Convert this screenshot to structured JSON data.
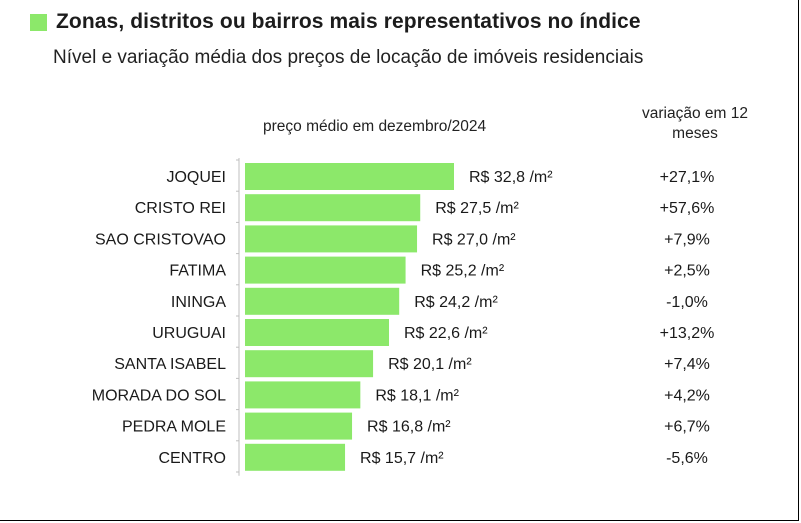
{
  "title": "Zonas, distritos ou bairros mais representativos no índice",
  "subtitle": "Nível e variação média dos preços de locação de imóveis residenciais",
  "price_header": "preço médio em dezembro/2024",
  "variation_header": "variação em 12 meses",
  "accent_color": "#8ce86a",
  "chart_data": {
    "type": "bar",
    "orientation": "horizontal",
    "title": "Zonas, distritos ou bairros mais representativos no índice",
    "subtitle": "Nível e variação média dos preços de locação de imóveis residenciais",
    "xlabel": "preço médio em dezembro/2024",
    "ylabel": "",
    "unit": "R$/m²",
    "categories": [
      "JOQUEI",
      "CRISTO REI",
      "SAO CRISTOVAO",
      "FATIMA",
      "ININGA",
      "URUGUAI",
      "SANTA ISABEL",
      "MORADA DO SOL",
      "PEDRA MOLE",
      "CENTRO"
    ],
    "values": [
      32.8,
      27.5,
      27.0,
      25.2,
      24.2,
      22.6,
      20.1,
      18.1,
      16.8,
      15.7
    ],
    "value_labels": [
      "R$ 32,8 /m²",
      "R$ 27,5 /m²",
      "R$ 27,0 /m²",
      "R$ 25,2 /m²",
      "R$ 24,2 /m²",
      "R$ 22,6 /m²",
      "R$ 20,1 /m²",
      "R$ 18,1 /m²",
      "R$ 16,8 /m²",
      "R$ 15,7 /m²"
    ],
    "variation_12m": [
      "+27,1%",
      "+57,6%",
      "+7,9%",
      "+2,5%",
      "-1,0%",
      "+13,2%",
      "+7,4%",
      "+4,2%",
      "+6,7%",
      "-5,6%"
    ],
    "xlim": [
      0,
      32.8
    ],
    "bar_color": "#8ce86a"
  }
}
